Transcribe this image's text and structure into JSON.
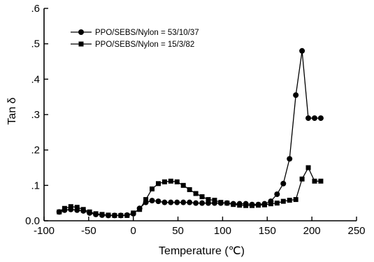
{
  "chart_data": {
    "type": "line",
    "xlabel": "Temperature (℃)",
    "ylabel": "Tan δ",
    "xlim": [
      -100,
      250
    ],
    "ylim": [
      0.0,
      0.6
    ],
    "x_ticks": [
      -100,
      -50,
      0,
      50,
      100,
      150,
      200,
      250
    ],
    "x_tick_labels": [
      "-100",
      "-50",
      "0",
      "50",
      "100",
      "150",
      "200",
      "250"
    ],
    "y_ticks": [
      0.0,
      0.1,
      0.2,
      0.3,
      0.4,
      0.5,
      0.6
    ],
    "y_tick_labels": [
      "0.0",
      ".1",
      ".2",
      ".3",
      ".4",
      ".5",
      ".6"
    ],
    "grid": false,
    "legend_position": "top-left",
    "series": [
      {
        "name": "PPO/SEBS/Nylon = 53/10/37",
        "marker": "circle",
        "x": [
          -83,
          -77,
          -70,
          -63,
          -56,
          -49,
          -42,
          -35,
          -28,
          -21,
          -14,
          -7,
          0,
          7,
          14,
          21,
          28,
          35,
          42,
          49,
          56,
          63,
          70,
          77,
          84,
          91,
          98,
          105,
          112,
          119,
          126,
          133,
          140,
          147,
          154,
          161,
          168,
          175,
          182,
          189,
          196,
          203,
          210
        ],
        "y": [
          0.025,
          0.03,
          0.032,
          0.03,
          0.028,
          0.022,
          0.018,
          0.016,
          0.015,
          0.015,
          0.015,
          0.016,
          0.02,
          0.035,
          0.052,
          0.057,
          0.055,
          0.052,
          0.052,
          0.052,
          0.052,
          0.052,
          0.05,
          0.05,
          0.05,
          0.05,
          0.05,
          0.05,
          0.048,
          0.048,
          0.048,
          0.046,
          0.046,
          0.048,
          0.055,
          0.075,
          0.105,
          0.175,
          0.355,
          0.48,
          0.29,
          0.29,
          0.29
        ]
      },
      {
        "name": "PPO/SEBS/Nylon = 15/3/82",
        "marker": "square",
        "x": [
          -83,
          -77,
          -70,
          -63,
          -56,
          -49,
          -42,
          -35,
          -28,
          -21,
          -14,
          -7,
          0,
          7,
          14,
          21,
          28,
          35,
          42,
          49,
          56,
          63,
          70,
          77,
          84,
          91,
          98,
          105,
          112,
          119,
          126,
          133,
          140,
          147,
          154,
          161,
          168,
          175,
          182,
          189,
          196,
          203,
          210
        ],
        "y": [
          0.025,
          0.035,
          0.04,
          0.038,
          0.032,
          0.025,
          0.02,
          0.018,
          0.016,
          0.015,
          0.015,
          0.015,
          0.022,
          0.032,
          0.06,
          0.09,
          0.105,
          0.11,
          0.112,
          0.11,
          0.1,
          0.088,
          0.077,
          0.068,
          0.06,
          0.058,
          0.052,
          0.05,
          0.046,
          0.044,
          0.043,
          0.043,
          0.044,
          0.045,
          0.048,
          0.05,
          0.055,
          0.058,
          0.06,
          0.118,
          0.15,
          0.112,
          0.112
        ]
      }
    ]
  }
}
